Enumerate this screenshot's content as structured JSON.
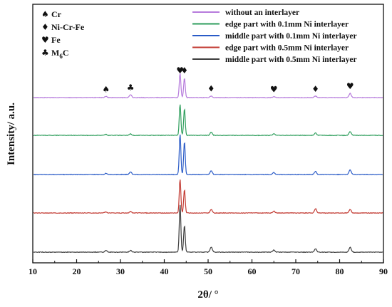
{
  "chart_data": {
    "type": "line",
    "title": "",
    "xlabel": "2θ/ °",
    "ylabel": "Intensity/ a.u.",
    "xlim": [
      10,
      90
    ],
    "xticks": [
      "10",
      "20",
      "30",
      "40",
      "50",
      "60",
      "70",
      "80",
      "90"
    ],
    "grid": false,
    "legend_position": "top-right",
    "phase_legend_position": "top-left",
    "phase_legend": [
      {
        "symbol": "♠",
        "label": "Cr"
      },
      {
        "symbol": "♦",
        "label": "Ni-Cr-Fe"
      },
      {
        "symbol": "♥",
        "label": "Fe"
      },
      {
        "symbol": "♣",
        "label": "M6C"
      }
    ],
    "phase_m6c_label": {
      "main": "M",
      "sub": "6",
      "tail": "C"
    },
    "series": [
      {
        "name": "without an interlayer",
        "color": "#b67bdc",
        "peaks": [
          [
            26.7,
            0.05
          ],
          [
            32.3,
            0.12
          ],
          [
            43.6,
            1.0
          ],
          [
            44.6,
            0.8
          ],
          [
            50.7,
            0.07
          ],
          [
            65.0,
            0.04
          ],
          [
            74.5,
            0.06
          ],
          [
            82.4,
            0.17
          ]
        ]
      },
      {
        "name": "edge part with 0.1mm Ni interlayer",
        "color": "#2e9e5c",
        "peaks": [
          [
            26.7,
            0.03
          ],
          [
            32.3,
            0.05
          ],
          [
            43.6,
            1.0
          ],
          [
            44.6,
            0.85
          ],
          [
            50.7,
            0.1
          ],
          [
            65.0,
            0.05
          ],
          [
            74.5,
            0.08
          ],
          [
            82.4,
            0.12
          ]
        ]
      },
      {
        "name": "middle part with 0.1mm Ni interlayer",
        "color": "#2a5bc7",
        "peaks": [
          [
            26.7,
            0.03
          ],
          [
            32.3,
            0.07
          ],
          [
            43.6,
            1.05
          ],
          [
            44.6,
            0.85
          ],
          [
            50.7,
            0.1
          ],
          [
            65.0,
            0.05
          ],
          [
            74.5,
            0.08
          ],
          [
            82.4,
            0.12
          ]
        ]
      },
      {
        "name": "edge part with 0.5mm Ni interlayer",
        "color": "#c23a32",
        "peaks": [
          [
            26.7,
            0.03
          ],
          [
            32.3,
            0.04
          ],
          [
            43.6,
            0.95
          ],
          [
            44.6,
            0.65
          ],
          [
            50.7,
            0.1
          ],
          [
            65.0,
            0.05
          ],
          [
            74.5,
            0.12
          ],
          [
            82.4,
            0.1
          ]
        ]
      },
      {
        "name": "middle part with 0.5mm Ni interlayer",
        "color": "#3d3d3d",
        "peaks": [
          [
            26.7,
            0.04
          ],
          [
            32.3,
            0.04
          ],
          [
            43.6,
            1.15
          ],
          [
            44.6,
            0.65
          ],
          [
            50.7,
            0.12
          ],
          [
            65.0,
            0.05
          ],
          [
            74.5,
            0.08
          ],
          [
            82.4,
            0.12
          ]
        ]
      }
    ],
    "peak_markers": [
      {
        "x": 26.7,
        "symbol": "♠"
      },
      {
        "x": 32.3,
        "symbol": "♣"
      },
      {
        "x": 43.6,
        "symbol": "♥"
      },
      {
        "x": 44.6,
        "symbol": "♦"
      },
      {
        "x": 50.7,
        "symbol": "♦"
      },
      {
        "x": 65.0,
        "symbol": "♥"
      },
      {
        "x": 74.5,
        "symbol": "♦"
      },
      {
        "x": 82.4,
        "symbol": "♥"
      }
    ]
  }
}
